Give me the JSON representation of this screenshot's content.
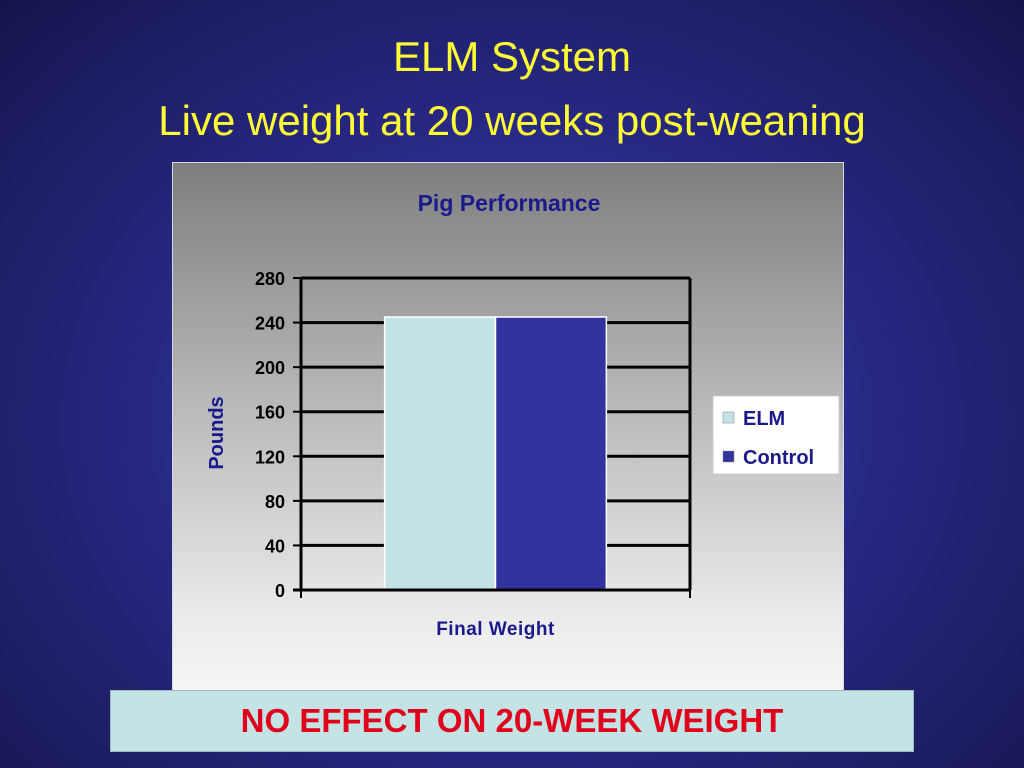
{
  "slide": {
    "title_line1": "ELM System",
    "title_line2": "Live weight at 20 weeks post-weaning",
    "callout": "NO EFFECT ON 20-WEEK WEIGHT"
  },
  "chart_data": {
    "type": "bar",
    "title": "Pig Performance",
    "xlabel": "",
    "ylabel": "Pounds",
    "categories": [
      "Final Weight"
    ],
    "series": [
      {
        "name": "ELM",
        "values": [
          245
        ],
        "color": "#c4e3e5"
      },
      {
        "name": "Control",
        "values": [
          245
        ],
        "color": "#3333a0"
      }
    ],
    "ylim": [
      0,
      280
    ],
    "yticks": [
      0,
      40,
      80,
      120,
      160,
      200,
      240,
      280
    ],
    "grid": true,
    "legend_position": "right"
  }
}
